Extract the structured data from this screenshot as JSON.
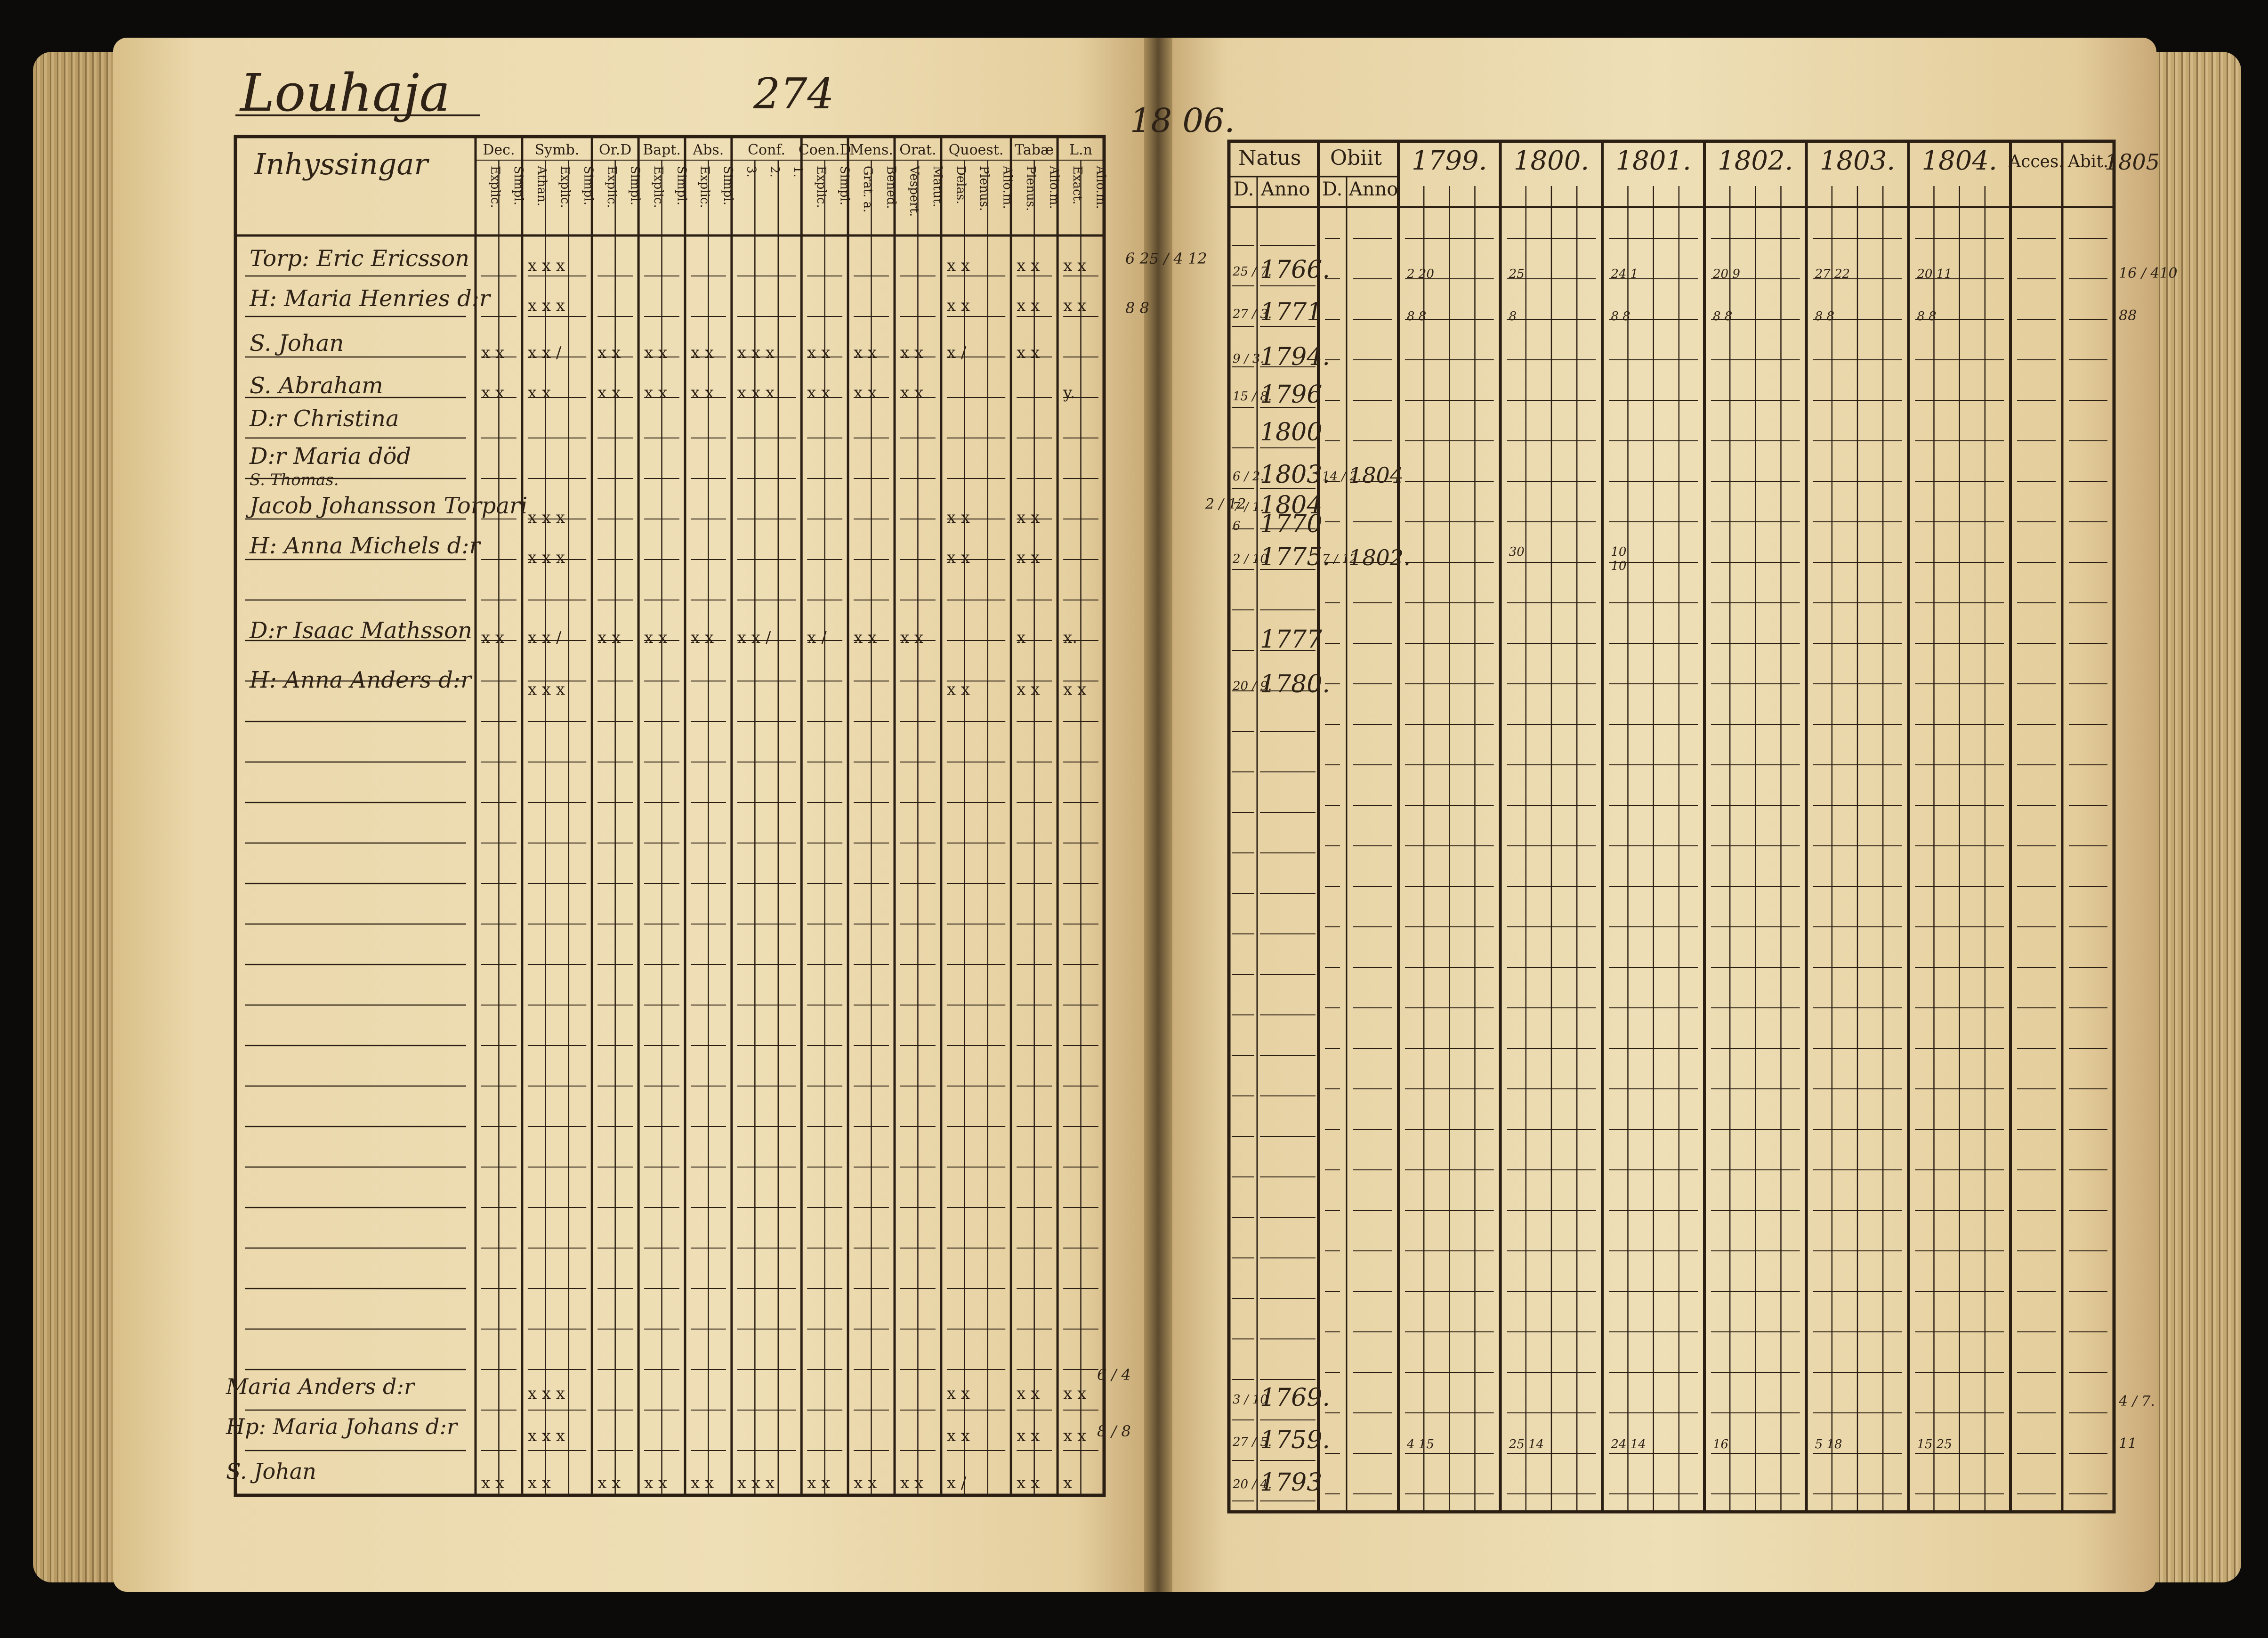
{
  "left_page": {
    "place_title": "Louhaja",
    "page_number": "274",
    "side_year": "18 06.",
    "table_header": {
      "names_col": "Inhyssingar",
      "groups": [
        {
          "label": "Dec.",
          "subs": [
            "Explic.",
            "Simpl."
          ]
        },
        {
          "label": "Symb.",
          "subs": [
            "Athan.",
            "Explic.",
            "Simpl."
          ]
        },
        {
          "label": "Or.D",
          "subs": [
            "Explic.",
            "Simpl."
          ]
        },
        {
          "label": "Bapt.",
          "subs": [
            "Explic.",
            "Simpl."
          ]
        },
        {
          "label": "Abs.",
          "subs": [
            "Explic.",
            "Simpl."
          ]
        },
        {
          "label": "Conf.",
          "subs": [
            "3.",
            "2.",
            "1."
          ]
        },
        {
          "label": "Coen.D",
          "subs": [
            "Explic.",
            "Simpl."
          ]
        },
        {
          "label": "Mens.",
          "subs": [
            "Grat. a.",
            "Bened."
          ]
        },
        {
          "label": "Orat.",
          "subs": [
            "Vespert.",
            "Matut."
          ]
        },
        {
          "label": "Quoest.",
          "subs": [
            "Delas.",
            "Plenus.",
            "Alio.m."
          ]
        },
        {
          "label": "Tabæ",
          "subs": [
            "Plenus.",
            "Alio.m."
          ]
        },
        {
          "label": "L.n",
          "subs": [
            "Exact.",
            "Alio.m."
          ]
        }
      ]
    },
    "rows": [
      {
        "name": "Torp: Eric Ericsson",
        "marks": "",
        "side": "6 25 / 4 12"
      },
      {
        "name": "H: Maria Henries d:r",
        "marks": "",
        "side": "8 8"
      },
      {
        "name": "S. Johan",
        "marks": "",
        "side": ""
      },
      {
        "name": "S. Abraham",
        "marks": "",
        "side": ""
      },
      {
        "name": "D:r Christina",
        "marks": "",
        "side": ""
      },
      {
        "name": "D:r Maria  död",
        "marks": "",
        "side": ""
      },
      {
        "name": "S. Thomas.",
        "marks": "",
        "side": ""
      },
      {
        "name": "Jacob Johansson Torpari",
        "marks": "",
        "side": ""
      },
      {
        "name": "H: Anna Michels d:r",
        "marks": "",
        "side": ""
      },
      {
        "name": "D:r Isaac Mathsson",
        "marks": "",
        "side": ""
      },
      {
        "name": "H: Anna Anders d:r",
        "marks": "",
        "side": ""
      },
      {
        "name": "Maria Anders d:r",
        "marks": "",
        "side": "6 / 4"
      },
      {
        "name": "Hp: Maria Johans d:r",
        "marks": "",
        "side": "8 / 8"
      },
      {
        "name": "S. Johan",
        "marks": "",
        "side": ""
      }
    ],
    "margin_note_left": "2 / 12"
  },
  "right_page": {
    "header": {
      "natus": "Natus",
      "obiit": "Obiit",
      "d": "D.",
      "anno": "Anno",
      "years": [
        "1799.",
        "1800.",
        "1801.",
        "1802.",
        "1803.",
        "1804."
      ],
      "accessit": "Acces.",
      "abiit": "Abit.",
      "extra_year": "1805"
    },
    "birth_rows": [
      {
        "d": "25 / 7.",
        "anno": "1766.",
        "obiit_d": "",
        "obiit_anno": "",
        "side": "16 / 410"
      },
      {
        "d": "27 / 3.",
        "anno": "1771",
        "obiit_d": "",
        "obiit_anno": "",
        "side": "88"
      },
      {
        "d": "9 / 3.",
        "anno": "1794.",
        "obiit_d": "",
        "obiit_anno": "",
        "side": ""
      },
      {
        "d": "15 / 8.",
        "anno": "1796",
        "obiit_d": "",
        "obiit_anno": "",
        "side": ""
      },
      {
        "d": "",
        "anno": "1800",
        "obiit_d": "",
        "obiit_anno": "",
        "side": ""
      },
      {
        "d": "6 / 2.",
        "anno": "1803.",
        "obiit_d": "14 / 2.",
        "obiit_anno": "1804",
        "side": ""
      },
      {
        "d": "7 / 1.",
        "anno": "1804",
        "obiit_d": "",
        "obiit_anno": "",
        "side": ""
      },
      {
        "d": "6",
        "anno": "1770",
        "obiit_d": "",
        "obiit_anno": "",
        "side": ""
      },
      {
        "d": "2 / 10",
        "anno": "1775.",
        "obiit_d": "7 / 12",
        "obiit_anno": "1802.",
        "side": ""
      },
      {
        "d": "",
        "anno": "1777",
        "obiit_d": "",
        "obiit_anno": "",
        "side": ""
      },
      {
        "d": "20 / 9.",
        "anno": "1780.",
        "obiit_d": "",
        "obiit_anno": "",
        "side": ""
      },
      {
        "d": "3 / 10",
        "anno": "1769.",
        "obiit_d": "",
        "obiit_anno": "",
        "side": "4 / 7."
      },
      {
        "d": "27 / 5.",
        "anno": "1759.",
        "obiit_d": "",
        "obiit_anno": "",
        "side": "11"
      },
      {
        "d": "20 / 4.",
        "anno": "1793",
        "obiit_d": "",
        "obiit_anno": "",
        "side": ""
      }
    ]
  }
}
